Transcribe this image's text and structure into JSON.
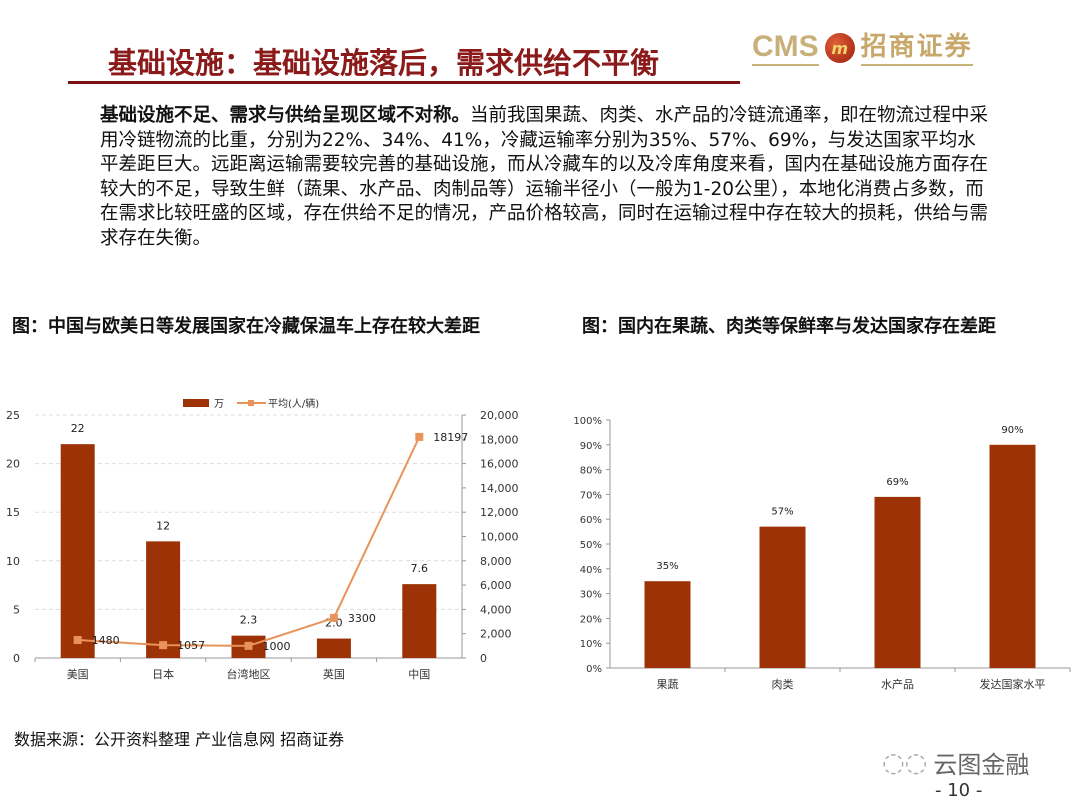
{
  "title": "基础设施：基础设施落后，需求供给不平衡",
  "logo": {
    "latin": "CMS",
    "emblem": "m",
    "chinese": "招商证券"
  },
  "body": {
    "lead": "基础设施不足、需求与供给呈现区域不对称。",
    "text": "当前我国果蔬、肉类、水产品的冷链流通率，即在物流过程中采用冷链物流的比重，分别为22%、34%、41%，冷藏运输率分别为35%、57%、69%，与发达国家平均水平差距巨大。远距离运输需要较完善的基础设施，而从冷藏车的以及冷库角度来看，国内在基础设施方面存在较大的不足，导致生鲜（蔬果、水产品、肉制品等）运输半径小（一般为1-20公里），本地化消费占多数，而在需求比较旺盛的区域，存在供给不足的情况，产品价格较高，同时在运输过程中存在较大的损耗，供给与需求存在失衡。"
  },
  "captions": {
    "left": "图：中国与欧美日等发展国家在冷藏保温车上存在较大差距",
    "right": "图：国内在果蔬、肉类等保鲜率与发达国家存在差距"
  },
  "source": "数据来源：公开资料整理 产业信息网 招商证券",
  "watermark": "云图金融",
  "page_number": "- 10 -",
  "colors": {
    "title": "#8b1a1a",
    "bar": "#9c3206",
    "line": "#e8935a",
    "logo_gold": "#c8b07a"
  },
  "chart_data": [
    {
      "type": "bar+line",
      "categories": [
        "美国",
        "日本",
        "台湾地区",
        "英国",
        "中国"
      ],
      "series": [
        {
          "name": "万",
          "type": "bar",
          "axis": "left",
          "values": [
            22,
            12,
            2.3,
            2.0,
            7.6
          ],
          "labels": [
            "22",
            "12",
            "2.3",
            "2.0",
            "7.6"
          ]
        },
        {
          "name": "平均(人/辆)",
          "type": "line",
          "axis": "right",
          "values": [
            1480,
            1057,
            1000,
            3300,
            18197
          ],
          "labels": [
            "1480",
            "1057",
            "1000",
            "3300",
            "18197"
          ]
        }
      ],
      "ylim_left": [
        0,
        25
      ],
      "yticks_left": [
        "0",
        "5",
        "10",
        "15",
        "20",
        "25"
      ],
      "ylim_right": [
        0,
        20000
      ],
      "yticks_right": [
        "0",
        "2,000",
        "4,000",
        "6,000",
        "8,000",
        "10,000",
        "12,000",
        "14,000",
        "16,000",
        "18,000",
        "20,000"
      ],
      "grid": true,
      "legend": "top"
    },
    {
      "type": "bar",
      "categories": [
        "果蔬",
        "肉类",
        "水产品",
        "发达国家水平"
      ],
      "values": [
        35,
        57,
        69,
        90
      ],
      "labels": [
        "35%",
        "57%",
        "69%",
        "90%"
      ],
      "ylim": [
        0,
        100
      ],
      "yticks": [
        "0%",
        "10%",
        "20%",
        "30%",
        "40%",
        "50%",
        "60%",
        "70%",
        "80%",
        "90%",
        "100%"
      ],
      "grid": false
    }
  ]
}
